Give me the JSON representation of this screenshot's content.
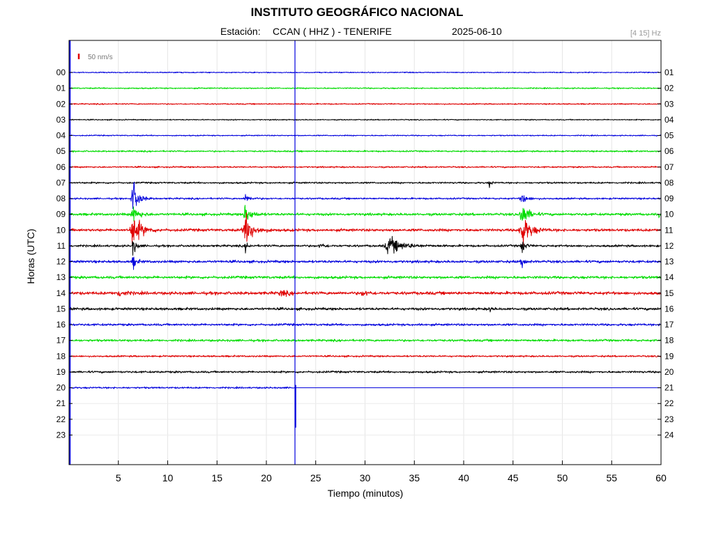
{
  "header": {
    "title": "INSTITUTO GEOGRÁFICO NACIONAL",
    "station_label": "Estación:",
    "station": "CCAN ( HHZ ) - TENERIFE",
    "date": "2025-06-10",
    "filter": "[4 15] Hz"
  },
  "chart_data": {
    "type": "line",
    "title": "INSTITUTO GEOGRÁFICO NACIONAL",
    "xlabel": "Tiempo (minutos)",
    "ylabel": "Horas (UTC)",
    "xlim": [
      0,
      60
    ],
    "x_ticks": [
      5,
      10,
      15,
      20,
      25,
      30,
      35,
      40,
      45,
      50,
      55,
      60
    ],
    "y_ticks_left": [
      "00",
      "01",
      "02",
      "03",
      "04",
      "05",
      "06",
      "07",
      "08",
      "09",
      "10",
      "11",
      "12",
      "13",
      "14",
      "15",
      "16",
      "17",
      "18",
      "19",
      "20",
      "21",
      "22",
      "23"
    ],
    "y_ticks_right": [
      "01",
      "02",
      "03",
      "04",
      "05",
      "06",
      "07",
      "08",
      "09",
      "10",
      "11",
      "12",
      "13",
      "14",
      "15",
      "16",
      "17",
      "18",
      "19",
      "20",
      "21",
      "22",
      "23",
      "24"
    ],
    "scale_label": "50 nm/s",
    "scale_color": "#e00000",
    "current_time_minute": 22.9,
    "grid": true,
    "series_colors": [
      "#0000dd",
      "#00dd00",
      "#e00000",
      "#000000"
    ],
    "traces": [
      {
        "hour": "00",
        "noise": 1.2,
        "events": []
      },
      {
        "hour": "01",
        "noise": 1.5,
        "events": []
      },
      {
        "hour": "02",
        "noise": 1.4,
        "events": []
      },
      {
        "hour": "03",
        "noise": 1.2,
        "events": []
      },
      {
        "hour": "04",
        "noise": 1.3,
        "events": []
      },
      {
        "hour": "05",
        "noise": 1.8,
        "events": []
      },
      {
        "hour": "06",
        "noise": 1.8,
        "events": []
      },
      {
        "hour": "07",
        "noise": 2.0,
        "events": [
          {
            "t": 42.6,
            "amp": 10,
            "dur": 0.4
          }
        ]
      },
      {
        "hour": "08",
        "noise": 2.0,
        "events": [
          {
            "t": 6.5,
            "amp": 45,
            "dur": 1.0
          },
          {
            "t": 17.9,
            "amp": 9,
            "dur": 1.0
          },
          {
            "t": 45.9,
            "amp": 14,
            "dur": 1.0
          }
        ]
      },
      {
        "hour": "09",
        "noise": 3.0,
        "events": [
          {
            "t": 6.5,
            "amp": 20,
            "dur": 1.2
          },
          {
            "t": 17.9,
            "amp": 22,
            "dur": 1.2
          },
          {
            "t": 45.9,
            "amp": 32,
            "dur": 1.2
          },
          {
            "t": 59.8,
            "amp": 6,
            "dur": 0.3
          }
        ]
      },
      {
        "hour": "10",
        "noise": 3.2,
        "events": [
          {
            "t": 6.5,
            "amp": 40,
            "dur": 1.6
          },
          {
            "t": 17.9,
            "amp": 36,
            "dur": 1.6
          },
          {
            "t": 45.9,
            "amp": 40,
            "dur": 1.6
          }
        ]
      },
      {
        "hour": "11",
        "noise": 2.6,
        "events": [
          {
            "t": 25.5,
            "amp": 6,
            "dur": 1.0
          },
          {
            "t": 32.5,
            "amp": 20,
            "dur": 2.6
          },
          {
            "t": 6.5,
            "amp": 22,
            "dur": 0.6
          },
          {
            "t": 17.9,
            "amp": 12,
            "dur": 0.5
          },
          {
            "t": 45.9,
            "amp": 22,
            "dur": 0.6
          }
        ]
      },
      {
        "hour": "12",
        "noise": 3.0,
        "events": [
          {
            "t": 6.5,
            "amp": 18,
            "dur": 0.6
          },
          {
            "t": 45.9,
            "amp": 16,
            "dur": 0.6
          }
        ]
      },
      {
        "hour": "13",
        "noise": 3.2,
        "events": []
      },
      {
        "hour": "14",
        "noise": 3.6,
        "events": [
          {
            "t": 5.0,
            "amp": 9,
            "dur": 1.2
          },
          {
            "t": 21.5,
            "amp": 7,
            "dur": 1.2
          },
          {
            "t": 29.8,
            "amp": 6,
            "dur": 1.2
          }
        ]
      },
      {
        "hour": "15",
        "noise": 3.0,
        "events": [
          {
            "t": 42.6,
            "amp": 9,
            "dur": 0.4
          }
        ]
      },
      {
        "hour": "16",
        "noise": 2.6,
        "events": [
          {
            "t": 35.5,
            "amp": 4,
            "dur": 0.3
          }
        ]
      },
      {
        "hour": "17",
        "noise": 2.6,
        "events": []
      },
      {
        "hour": "18",
        "noise": 2.0,
        "events": []
      },
      {
        "hour": "19",
        "noise": 2.4,
        "events": []
      },
      {
        "hour": "20",
        "noise": 2.0,
        "events": [],
        "end_minute": 22.9
      }
    ]
  }
}
